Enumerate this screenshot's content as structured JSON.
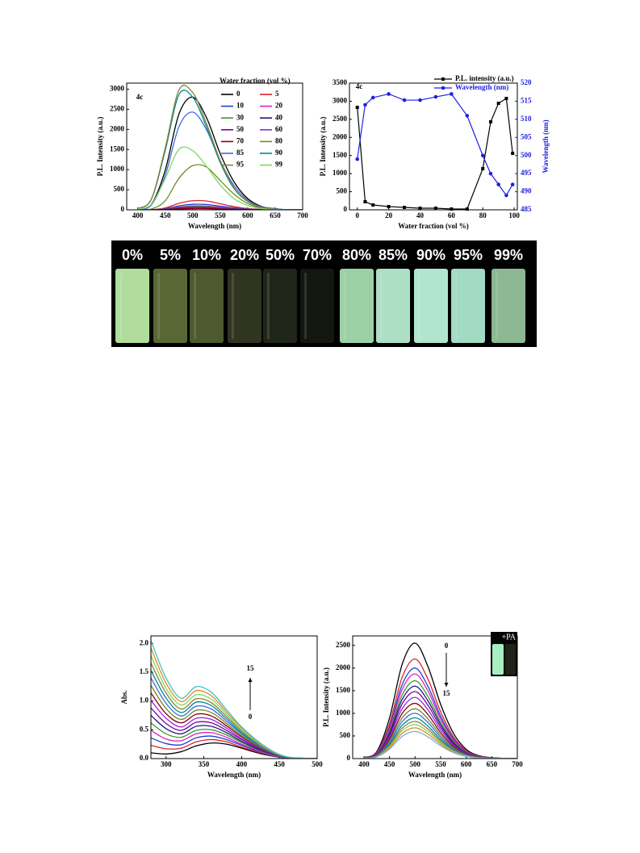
{
  "chart_data": [
    {
      "type": "line",
      "annotations": [
        "4c"
      ],
      "xlabel": "Wavelength (nm)",
      "ylabel": "P.L. Intensity (a.u.)",
      "legend_title": "Water fraction (vol %)",
      "xlim": [
        380,
        700
      ],
      "ylim": [
        0,
        3150
      ],
      "xticks": [
        400,
        450,
        500,
        550,
        600,
        650,
        700
      ],
      "yticks": [
        0,
        500,
        1000,
        1500,
        2000,
        2500,
        3000
      ],
      "smooth": true,
      "x": [
        400,
        425,
        450,
        475,
        500,
        525,
        550,
        575,
        600,
        625,
        650,
        675,
        700
      ],
      "series": [
        {
          "name": "0",
          "color": "#000000",
          "values": [
            14,
            140,
            980,
            2380,
            2800,
            2296,
            1400,
            700,
            280,
            84,
            28,
            0,
            0
          ]
        },
        {
          "name": "5",
          "color": "#e0202a",
          "values": [
            0,
            5,
            46,
            161,
            225,
            219,
            150,
            81,
            32,
            9,
            2,
            0,
            0
          ]
        },
        {
          "name": "10",
          "color": "#1f3fd0",
          "values": [
            0,
            3,
            28,
            98,
            137,
            133,
            91,
            49,
            20,
            6,
            1,
            0,
            0
          ]
        },
        {
          "name": "20",
          "color": "#e020c0",
          "values": [
            0,
            2,
            20,
            70,
            98,
            95,
            65,
            35,
            14,
            4,
            1,
            0,
            0
          ]
        },
        {
          "name": "30",
          "color": "#3a9a2a",
          "values": [
            0,
            2,
            16,
            56,
            78,
            76,
            52,
            28,
            11,
            3,
            1,
            0,
            0
          ]
        },
        {
          "name": "40",
          "color": "#1a1a80",
          "values": [
            0,
            1,
            12,
            42,
            59,
            57,
            39,
            21,
            8,
            2,
            1,
            0,
            0
          ]
        },
        {
          "name": "50",
          "color": "#7a00a0",
          "values": [
            0,
            1,
            10,
            35,
            49,
            48,
            33,
            18,
            7,
            2,
            1,
            0,
            0
          ]
        },
        {
          "name": "60",
          "color": "#8a2be2",
          "values": [
            0,
            1,
            8,
            28,
            39,
            38,
            26,
            14,
            6,
            2,
            0,
            0,
            0
          ]
        },
        {
          "name": "70",
          "color": "#8b0000",
          "values": [
            0,
            1,
            6,
            21,
            29,
            29,
            20,
            11,
            4,
            1,
            0,
            0,
            0
          ]
        },
        {
          "name": "80",
          "color": "#6b8e23",
          "values": [
            0,
            22,
            224,
            784,
            1098,
            1064,
            728,
            392,
            157,
            45,
            11,
            0,
            0
          ]
        },
        {
          "name": "85",
          "color": "#4169e1",
          "values": [
            12,
            122,
            851,
            2066,
            2430,
            1993,
            1215,
            608,
            243,
            73,
            24,
            0,
            0
          ]
        },
        {
          "name": "90",
          "color": "#008b8b",
          "values": [
            30,
            266,
            1475,
            2862,
            2803,
            2065,
            1180,
            531,
            207,
            59,
            15,
            0,
            0
          ]
        },
        {
          "name": "95",
          "color": "#8b7d3a",
          "values": [
            31,
            276,
            1535,
            2978,
            2917,
            2149,
            1228,
            553,
            215,
            61,
            15,
            0,
            0
          ]
        },
        {
          "name": "99",
          "color": "#7fd65f",
          "values": [
            16,
            140,
            775,
            1504,
            1473,
            1085,
            620,
            279,
            109,
            31,
            8,
            0,
            0
          ]
        }
      ]
    },
    {
      "type": "line",
      "annotations": [
        "4c"
      ],
      "xlabel": "Water fraction (vol %)",
      "ylabel": "P.L. Intensity (a.u.)",
      "y2label": "Wavelength (nm)",
      "xlim": [
        -5,
        102
      ],
      "ylim": [
        0,
        3500
      ],
      "y2lim": [
        485,
        520
      ],
      "xticks": [
        0,
        20,
        40,
        60,
        80,
        100
      ],
      "yticks": [
        0,
        500,
        1000,
        1500,
        2000,
        2500,
        3000,
        3500
      ],
      "y2ticks": [
        485,
        490,
        495,
        500,
        505,
        510,
        515,
        520
      ],
      "x": [
        0,
        5,
        10,
        20,
        30,
        40,
        50,
        60,
        70,
        80,
        85,
        90,
        95,
        99
      ],
      "series": [
        {
          "name": "P.L. intensity (a.u.)",
          "color": "#000000",
          "marker": "square",
          "values": [
            2830,
            223,
            134,
            90,
            67,
            45,
            45,
            22,
            22,
            1137,
            2430,
            2943,
            3077,
            1560
          ]
        },
        {
          "name": "Wavelength (nm)",
          "color": "#2020e0",
          "marker": "circle",
          "axis": "y2",
          "values": [
            499,
            514,
            516,
            517,
            515.3,
            515.3,
            516.2,
            517,
            511,
            500,
            495,
            492,
            489,
            492
          ]
        }
      ]
    },
    {
      "type": "line",
      "annotations": [
        "15",
        "0"
      ],
      "xlabel": "Wavelength (nm)",
      "ylabel": "Abs.",
      "xlim": [
        280,
        500
      ],
      "ylim": [
        0,
        2.13
      ],
      "xticks": [
        300,
        350,
        400,
        450,
        500
      ],
      "yticks": [
        {
          "value": 0,
          "label": "0.0"
        },
        {
          "value": 0.5,
          "label": "0.5"
        },
        {
          "value": 1,
          "label": "1.0"
        },
        {
          "value": 1.5,
          "label": "1.5"
        },
        {
          "value": 2,
          "label": "2.0"
        }
      ],
      "smooth": true,
      "x": [
        280,
        300,
        320,
        340,
        360,
        380,
        400,
        430,
        460,
        500
      ],
      "series": [
        {
          "color": "#000000",
          "values": [
            0.1,
            0.08,
            0.12,
            0.22,
            0.27,
            0.25,
            0.18,
            0.07,
            0.01,
            0
          ]
        },
        {
          "color": "#e0202a",
          "values": [
            0.23,
            0.17,
            0.18,
            0.29,
            0.33,
            0.29,
            0.2,
            0.08,
            0.01,
            0
          ]
        },
        {
          "color": "#1f3fd0",
          "values": [
            0.36,
            0.26,
            0.24,
            0.36,
            0.39,
            0.33,
            0.23,
            0.09,
            0.01,
            0
          ]
        },
        {
          "color": "#e020c0",
          "values": [
            0.49,
            0.34,
            0.31,
            0.43,
            0.45,
            0.37,
            0.25,
            0.1,
            0.01,
            0
          ]
        },
        {
          "color": "#3a9a2a",
          "values": [
            0.62,
            0.43,
            0.37,
            0.49,
            0.5,
            0.41,
            0.28,
            0.11,
            0.02,
            0
          ]
        },
        {
          "color": "#1a1a80",
          "values": [
            0.75,
            0.52,
            0.43,
            0.56,
            0.56,
            0.45,
            0.3,
            0.12,
            0.02,
            0
          ]
        },
        {
          "color": "#7a00a0",
          "values": [
            0.88,
            0.61,
            0.49,
            0.63,
            0.62,
            0.49,
            0.33,
            0.13,
            0.02,
            0
          ]
        },
        {
          "color": "#8a2be2",
          "values": [
            1.01,
            0.7,
            0.55,
            0.7,
            0.68,
            0.53,
            0.35,
            0.14,
            0.02,
            0
          ]
        },
        {
          "color": "#8b0000",
          "values": [
            1.14,
            0.78,
            0.62,
            0.77,
            0.74,
            0.57,
            0.38,
            0.15,
            0.02,
            0
          ]
        },
        {
          "color": "#6b8e23",
          "values": [
            1.27,
            0.87,
            0.68,
            0.84,
            0.8,
            0.61,
            0.4,
            0.16,
            0.02,
            0
          ]
        },
        {
          "color": "#4169e1",
          "values": [
            1.4,
            0.96,
            0.74,
            0.91,
            0.86,
            0.65,
            0.43,
            0.17,
            0.02,
            0
          ]
        },
        {
          "color": "#008b8b",
          "values": [
            1.53,
            1.05,
            0.8,
            0.98,
            0.92,
            0.69,
            0.45,
            0.18,
            0.02,
            0
          ]
        },
        {
          "color": "#8b7d3a",
          "values": [
            1.66,
            1.14,
            0.86,
            1.04,
            0.97,
            0.73,
            0.48,
            0.19,
            0.03,
            0
          ]
        },
        {
          "color": "#7fd65f",
          "values": [
            1.79,
            1.22,
            0.93,
            1.11,
            1.03,
            0.77,
            0.5,
            0.2,
            0.03,
            0
          ]
        },
        {
          "color": "#e08a20",
          "values": [
            1.92,
            1.31,
            0.99,
            1.18,
            1.09,
            0.81,
            0.53,
            0.21,
            0.03,
            0
          ]
        },
        {
          "color": "#40c0c8",
          "values": [
            2.05,
            1.4,
            1.05,
            1.25,
            1.15,
            0.85,
            0.55,
            0.22,
            0.03,
            0
          ]
        }
      ]
    },
    {
      "type": "line",
      "annotations": [
        "0",
        "15"
      ],
      "inset_label": "+PA",
      "xlabel": "Wavelength (nm)",
      "ylabel": "P.L. Intensity (a.u.)",
      "xlim": [
        378,
        700
      ],
      "ylim": [
        0,
        2710
      ],
      "xticks": [
        400,
        450,
        500,
        550,
        600,
        650,
        700
      ],
      "yticks": [
        0,
        500,
        1000,
        1500,
        2000,
        2500
      ],
      "smooth": true,
      "x": [
        400,
        425,
        450,
        475,
        500,
        525,
        550,
        575,
        600,
        625,
        650,
        675,
        700
      ],
      "series": [
        {
          "color": "#000000",
          "values": [
            26,
            153,
            893,
            2091,
            2550,
            2040,
            1199,
            561,
            204,
            64,
            20,
            5,
            0
          ]
        },
        {
          "color": "#e0202a",
          "values": [
            22,
            132,
            770,
            1804,
            2200,
            1760,
            1034,
            484,
            176,
            55,
            18,
            4,
            0
          ]
        },
        {
          "color": "#1f3fd0",
          "values": [
            20,
            120,
            700,
            1640,
            2000,
            1600,
            940,
            440,
            160,
            50,
            16,
            4,
            0
          ]
        },
        {
          "color": "#e020c0",
          "values": [
            19,
            112,
            655,
            1533,
            1870,
            1496,
            879,
            411,
            150,
            47,
            15,
            4,
            0
          ]
        },
        {
          "color": "#3a9a2a",
          "values": [
            17,
            103,
            602,
            1410,
            1720,
            1376,
            808,
            378,
            138,
            43,
            14,
            3,
            0
          ]
        },
        {
          "color": "#1a1a80",
          "values": [
            16,
            96,
            560,
            1312,
            1600,
            1280,
            752,
            352,
            128,
            40,
            13,
            3,
            0
          ]
        },
        {
          "color": "#7a00a0",
          "values": [
            15,
            89,
            518,
            1214,
            1480,
            1184,
            696,
            326,
            118,
            37,
            12,
            3,
            0
          ]
        },
        {
          "color": "#8a2be2",
          "values": [
            14,
            81,
            473,
            1107,
            1350,
            1080,
            635,
            297,
            108,
            34,
            11,
            3,
            0
          ]
        },
        {
          "color": "#8b0000",
          "values": [
            12,
            73,
            427,
            1000,
            1220,
            976,
            573,
            268,
            98,
            31,
            10,
            2,
            0
          ]
        },
        {
          "color": "#6b8e23",
          "values": [
            11,
            66,
            385,
            902,
            1100,
            880,
            517,
            242,
            88,
            28,
            9,
            2,
            0
          ]
        },
        {
          "color": "#4169e1",
          "values": [
            10,
            60,
            350,
            820,
            1000,
            800,
            470,
            220,
            80,
            25,
            8,
            2,
            0
          ]
        },
        {
          "color": "#008b8b",
          "values": [
            9,
            54,
            315,
            738,
            900,
            720,
            423,
            198,
            72,
            23,
            7,
            2,
            0
          ]
        },
        {
          "color": "#8b7d3a",
          "values": [
            8,
            49,
            287,
            672,
            820,
            656,
            385,
            180,
            66,
            21,
            7,
            2,
            0
          ]
        },
        {
          "color": "#7fd65f",
          "values": [
            8,
            45,
            263,
            615,
            750,
            600,
            353,
            165,
            60,
            19,
            6,
            2,
            0
          ]
        },
        {
          "color": "#e08a20",
          "values": [
            7,
            41,
            238,
            558,
            680,
            544,
            320,
            150,
            54,
            17,
            5,
            1,
            0
          ]
        },
        {
          "color": "#7ab0e8",
          "values": [
            6,
            36,
            210,
            492,
            600,
            480,
            282,
            132,
            48,
            15,
            5,
            1,
            0
          ]
        }
      ]
    }
  ],
  "photo": {
    "labels": [
      "0%",
      "5%",
      "10%",
      "20%",
      "50%",
      "70%",
      "80%",
      "85%",
      "90%",
      "95%",
      "99%"
    ]
  }
}
